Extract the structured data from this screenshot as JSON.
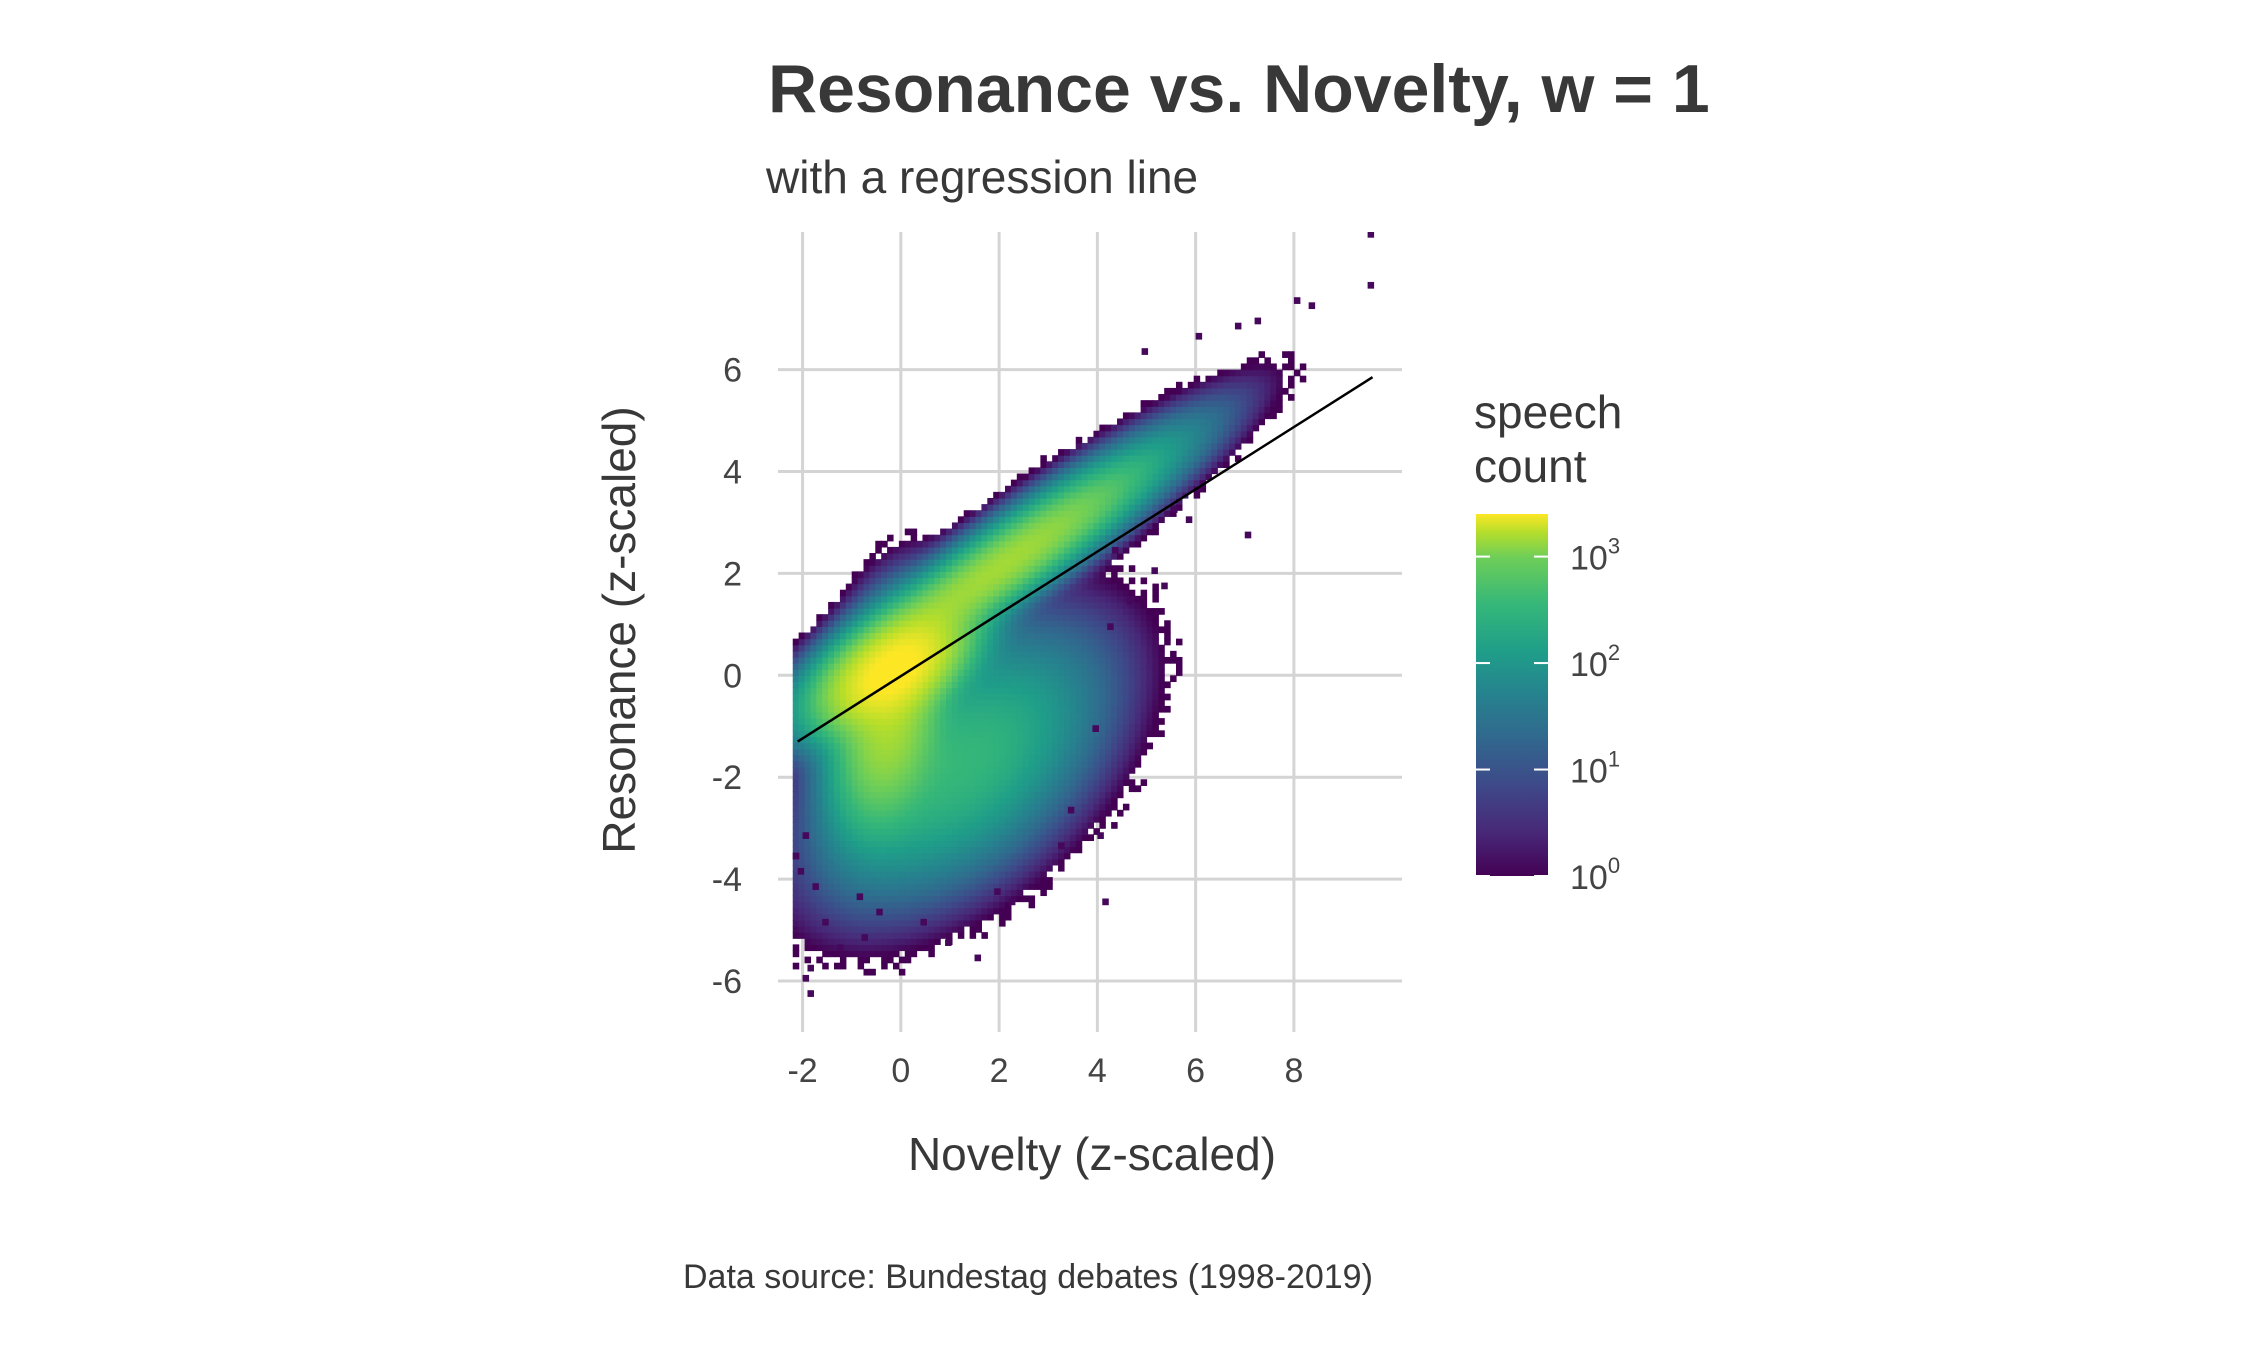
{
  "chart_data": {
    "type": "heatmap",
    "title": "Resonance vs. Novelty, w = 1",
    "subtitle": "with a regression line",
    "xlabel": "Novelty (z-scaled)",
    "ylabel": "Resonance (z-scaled)",
    "caption": "Data source: Bundestag debates (1998-2019)",
    "xlim": [
      -2.5,
      10.2
    ],
    "ylim": [
      -7.0,
      8.7
    ],
    "x_ticks": [
      "-2",
      "0",
      "2",
      "4",
      "6",
      "8"
    ],
    "x_tick_values": [
      -2,
      0,
      2,
      4,
      6,
      8
    ],
    "y_ticks": [
      "6",
      "4",
      "2",
      "0",
      "-2",
      "-4",
      "-6"
    ],
    "y_tick_values": [
      6,
      4,
      2,
      0,
      -2,
      -4,
      -6
    ],
    "grid": true,
    "scale": "log10 speech count (viridis)",
    "legend": {
      "title_line1": "speech",
      "title_line2": "count",
      "placement": "right",
      "labels": [
        {
          "base": "10",
          "exp": "3",
          "log_value": 3
        },
        {
          "base": "10",
          "exp": "2",
          "log_value": 2
        },
        {
          "base": "10",
          "exp": "1",
          "log_value": 1
        },
        {
          "base": "10",
          "exp": "0",
          "log_value": 0
        }
      ],
      "range_log": [
        0,
        3.4
      ]
    },
    "regression_line": {
      "x": [
        -2.1,
        9.6
      ],
      "y": [
        -1.3,
        5.85
      ],
      "color": "#000000"
    },
    "density": {
      "bin_width_x": 0.12,
      "bin_width_y": 0.12,
      "peak_log_count": 3.4,
      "components": [
        {
          "center": [
            -0.2,
            0.05
          ],
          "sd": [
            0.75,
            0.55
          ],
          "corr": 0.55,
          "weight": 1.0
        },
        {
          "center": [
            2.0,
            2.1
          ],
          "sd": [
            1.6,
            1.1
          ],
          "corr": 0.93,
          "weight": 0.35
        },
        {
          "center": [
            -0.3,
            -1.0
          ],
          "sd": [
            0.55,
            1.0
          ],
          "corr": 0.3,
          "weight": 0.35
        },
        {
          "center": [
            1.2,
            -1.8
          ],
          "sd": [
            1.3,
            1.2
          ],
          "corr": 0.5,
          "weight": 0.08
        }
      ],
      "outliers": [
        [
          9.5,
          8.6
        ],
        [
          9.5,
          7.6
        ],
        [
          8.0,
          7.3
        ],
        [
          8.3,
          7.2
        ],
        [
          6.8,
          6.8
        ],
        [
          7.2,
          6.9
        ],
        [
          6.0,
          6.6
        ],
        [
          4.9,
          6.3
        ],
        [
          5.5,
          3.2
        ],
        [
          7.0,
          2.7
        ],
        [
          5.8,
          3.0
        ],
        [
          4.3,
          2.4
        ],
        [
          5.1,
          2.0
        ],
        [
          4.6,
          1.4
        ],
        [
          4.2,
          0.9
        ],
        [
          5.3,
          1.7
        ],
        [
          3.9,
          -1.1
        ],
        [
          3.4,
          -2.7
        ],
        [
          4.0,
          -3.2
        ],
        [
          3.2,
          -3.4
        ],
        [
          4.1,
          -4.5
        ],
        [
          1.5,
          -5.6
        ],
        [
          -0.8,
          -5.2
        ],
        [
          -1.9,
          -5.8
        ],
        [
          -1.9,
          -6.3
        ],
        [
          -2.0,
          -6.0
        ],
        [
          -1.6,
          -4.9
        ],
        [
          -1.3,
          -5.4
        ],
        [
          0.4,
          -4.9
        ],
        [
          0.9,
          -5.3
        ],
        [
          -0.5,
          -4.7
        ],
        [
          1.9,
          -4.3
        ],
        [
          2.2,
          -4.5
        ],
        [
          -2.1,
          -3.9
        ],
        [
          -1.8,
          -4.2
        ],
        [
          -0.9,
          -4.4
        ],
        [
          -2.0,
          -3.2
        ],
        [
          -2.2,
          -3.6
        ]
      ]
    }
  }
}
